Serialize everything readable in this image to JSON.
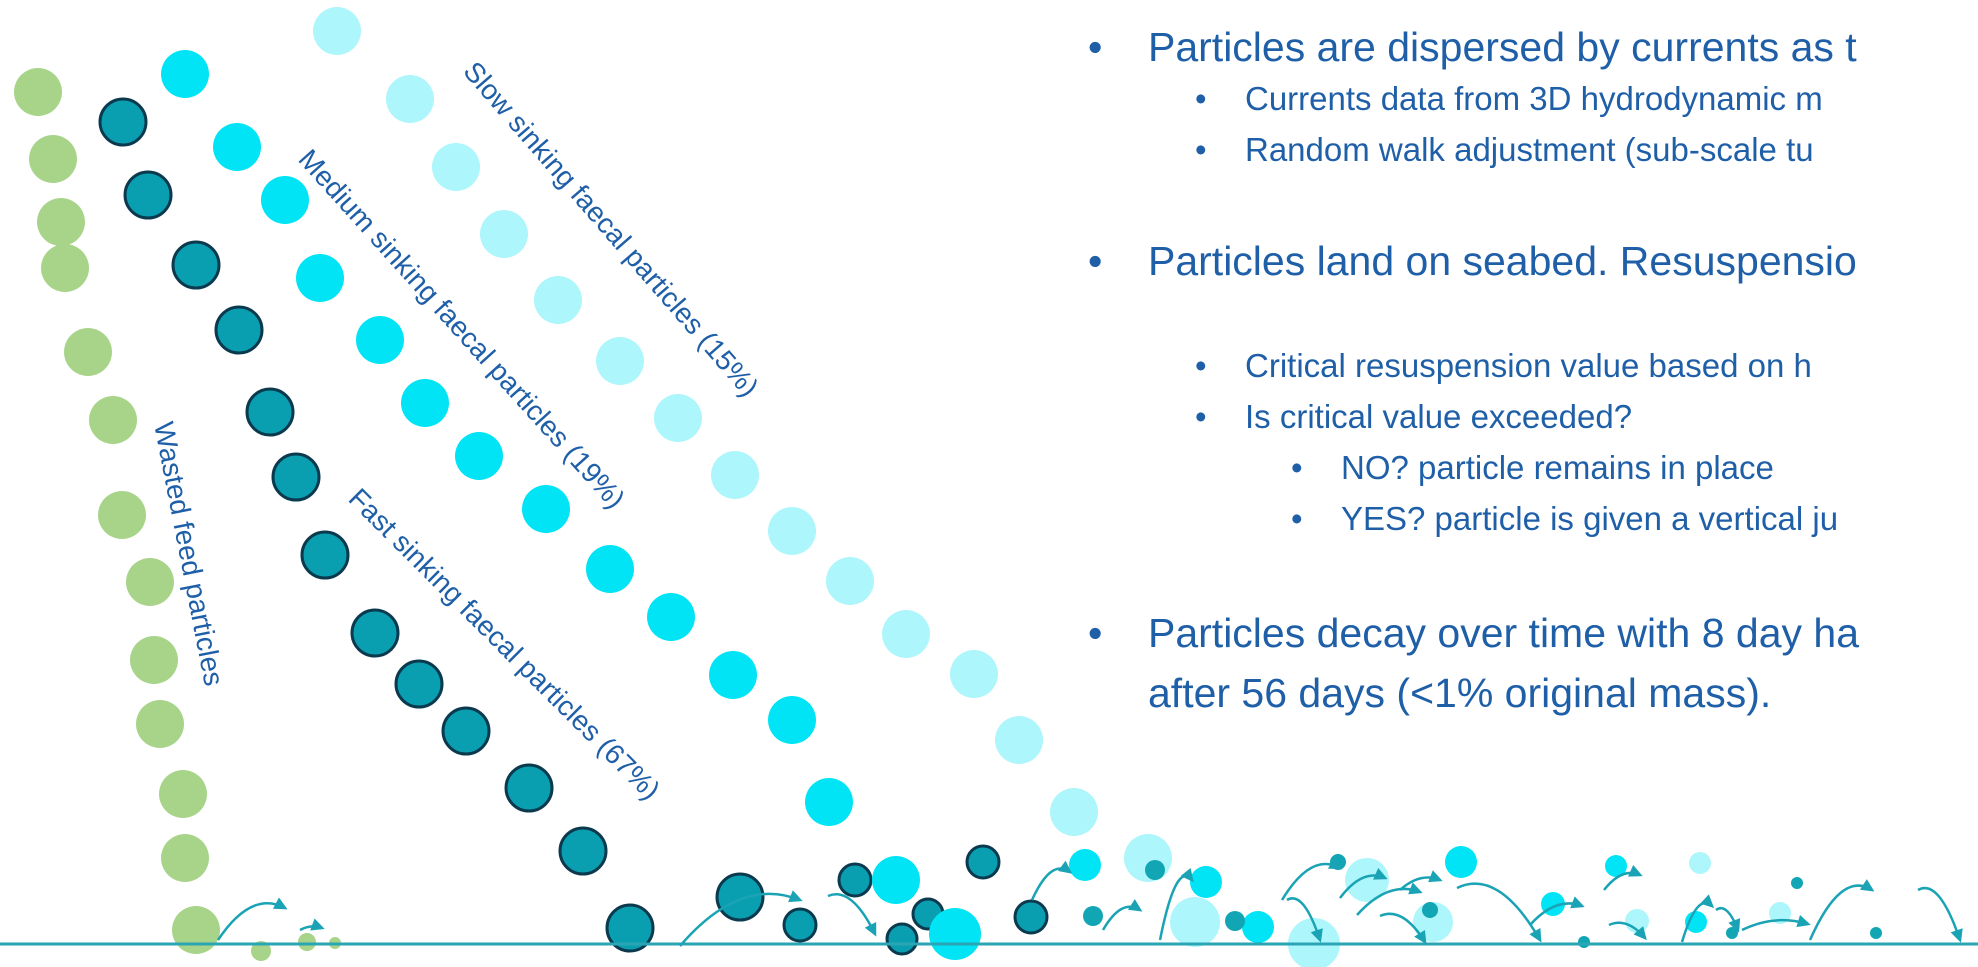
{
  "labels": {
    "slow": "Slow sinking faecal particles  (15%)",
    "medium": "Medium sinking faecal particles (19%)",
    "fast": "Fast sinking faecal particles (67%)",
    "wasted": "Wasted feed particles"
  },
  "bullets": {
    "b1": "Particles are dispersed by currents as t",
    "b1a": "Currents data from 3D hydrodynamic m",
    "b1b": "Random walk adjustment (sub-scale tu",
    "b2": "Particles land on seabed. Resuspensio",
    "b2a": "Critical resuspension value based on h",
    "b2b": "Is critical value exceeded?",
    "b2b1": "NO? particle remains in place",
    "b2b2": "YES? particle is given a vertical ju",
    "b3_line1": "Particles decay over time with 8 day ha",
    "b3_line2": "after 56 days (<1% original mass)."
  },
  "bullet_glyph": "•",
  "colors": {
    "wasted": "#a8d48a",
    "fast": "#0a9fb0",
    "medium": "#00e4f5",
    "slow": "#adf6fb",
    "text": "#1f5fa8",
    "seabed": "#2aa5b4"
  }
}
